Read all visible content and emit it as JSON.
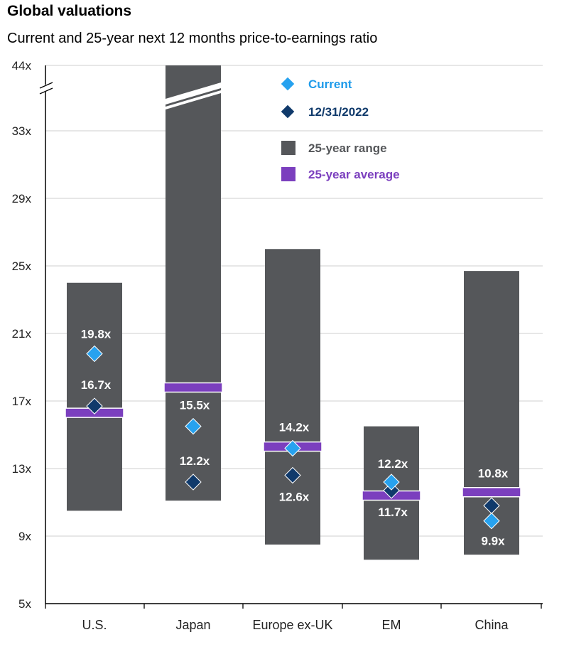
{
  "chart_data": {
    "type": "bar",
    "title": "Global valuations",
    "subtitle": "Current and 25-year next 12 months price-to-earnings ratio",
    "categories": [
      "U.S.",
      "Japan",
      "Europe ex-UK",
      "EM",
      "China"
    ],
    "y_ticks": [
      "5x",
      "9x",
      "13x",
      "17x",
      "21x",
      "25x",
      "29x",
      "33x",
      "44x"
    ],
    "ylim": [
      5,
      44
    ],
    "axis_break": true,
    "grid": true,
    "legend_position": "top-right",
    "legend": {
      "current": "Current",
      "prior": "12/31/2022",
      "range": "25-year range",
      "average": "25-year average"
    },
    "series": [
      {
        "name": "25-year range",
        "low": [
          10.5,
          11.1,
          8.5,
          7.6,
          7.9
        ],
        "high": [
          24.0,
          44.0,
          26.0,
          15.5,
          24.7
        ]
      },
      {
        "name": "25-year average",
        "values": [
          16.3,
          17.8,
          14.3,
          11.4,
          11.6
        ]
      },
      {
        "name": "Current",
        "values": [
          19.8,
          15.5,
          14.2,
          12.2,
          9.9
        ]
      },
      {
        "name": "12/31/2022",
        "values": [
          16.7,
          12.2,
          12.6,
          11.7,
          10.8
        ]
      }
    ],
    "data_labels": {
      "current": [
        "19.8x",
        "15.5x",
        "14.2x",
        "12.2x",
        "9.9x"
      ],
      "prior": [
        "16.7x",
        "12.2x",
        "12.6x",
        "11.7x",
        "10.8x"
      ]
    },
    "colors": {
      "range": "#55575a",
      "average": "#7b3fbe",
      "current": "#27a2ef",
      "prior": "#103a6b",
      "current_text": "#1f9bea",
      "prior_text": "#103a6b",
      "range_text": "#55575a",
      "average_text": "#7b3fbe"
    }
  }
}
